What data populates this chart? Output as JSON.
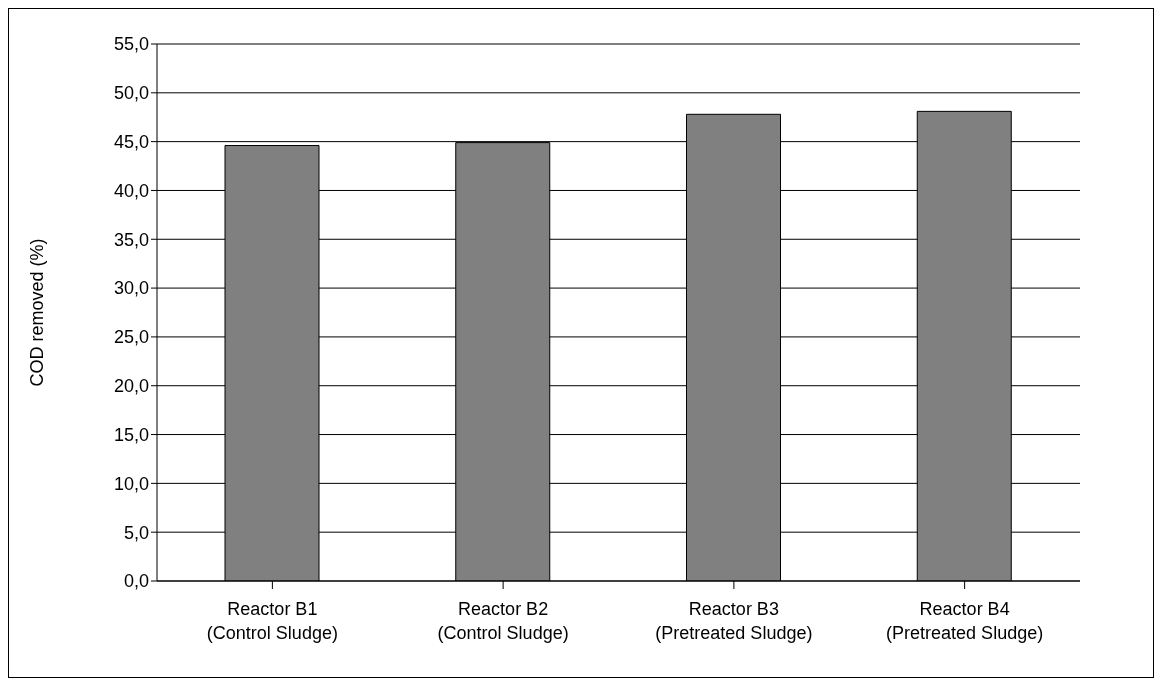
{
  "chart_data": {
    "type": "bar",
    "ylabel": "COD removed (%)",
    "categories": [
      "Reactor B1\n(Control Sludge)",
      "Reactor B2\n(Control Sludge)",
      "Reactor B3\n(Pretreated Sludge)",
      "Reactor B4\n(Pretreated Sludge)"
    ],
    "values": [
      44.6,
      44.9,
      47.8,
      48.1
    ],
    "color": "#808080",
    "ylim": [
      0,
      55
    ],
    "yticks": [
      {
        "value": 0,
        "label": "0,0"
      },
      {
        "value": 5,
        "label": "5,0"
      },
      {
        "value": 10,
        "label": "10,0"
      },
      {
        "value": 15,
        "label": "15,0"
      },
      {
        "value": 20,
        "label": "20,0"
      },
      {
        "value": 25,
        "label": "25,0"
      },
      {
        "value": 30,
        "label": "30,0"
      },
      {
        "value": 35,
        "label": "35,0"
      },
      {
        "value": 40,
        "label": "40,0"
      },
      {
        "value": 45,
        "label": "45,0"
      },
      {
        "value": 50,
        "label": "50,0"
      },
      {
        "value": 55,
        "label": "55,0"
      }
    ],
    "grid": "y",
    "legend": false
  }
}
